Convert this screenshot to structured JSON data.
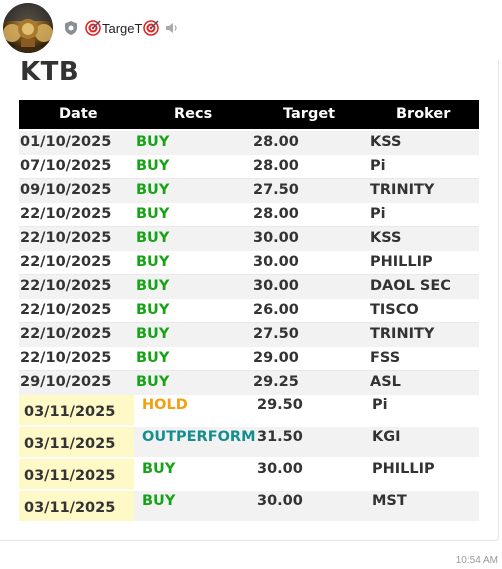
{
  "header": {
    "channel_name": "TargeT",
    "avatar_icon": "archer-avatar",
    "shield_icon": "shield-icon",
    "target_emoji": "direct-hit-emoji",
    "mute_icon": "speaker-muted-icon"
  },
  "card": {
    "stock": "KTB",
    "columns": [
      "Date",
      "Recs",
      "Target",
      "Broker"
    ],
    "rows": [
      {
        "date": "01/10/2025",
        "rec": "BUY",
        "target": "28.00",
        "broker": "KSS"
      },
      {
        "date": "07/10/2025",
        "rec": "BUY",
        "target": "28.00",
        "broker": "Pi"
      },
      {
        "date": "09/10/2025",
        "rec": "BUY",
        "target": "27.50",
        "broker": "TRINITY"
      },
      {
        "date": "22/10/2025",
        "rec": "BUY",
        "target": "28.00",
        "broker": "Pi"
      },
      {
        "date": "22/10/2025",
        "rec": "BUY",
        "target": "30.00",
        "broker": "KSS"
      },
      {
        "date": "22/10/2025",
        "rec": "BUY",
        "target": "30.00",
        "broker": "PHILLIP"
      },
      {
        "date": "22/10/2025",
        "rec": "BUY",
        "target": "30.00",
        "broker": "DAOL SEC"
      },
      {
        "date": "22/10/2025",
        "rec": "BUY",
        "target": "26.00",
        "broker": "TISCO"
      },
      {
        "date": "22/10/2025",
        "rec": "BUY",
        "target": "27.50",
        "broker": "TRINITY"
      },
      {
        "date": "22/10/2025",
        "rec": "BUY",
        "target": "29.00",
        "broker": "FSS"
      },
      {
        "date": "29/10/2025",
        "rec": "BUY",
        "target": "29.25",
        "broker": "ASL"
      }
    ],
    "new_rows": [
      {
        "date": "03/11/2025",
        "rec": "HOLD",
        "target": "29.50",
        "broker": "Pi"
      },
      {
        "date": "03/11/2025",
        "rec": "OUTPERFORM",
        "target": "31.50",
        "broker": "KGI"
      },
      {
        "date": "03/11/2025",
        "rec": "BUY",
        "target": "30.00",
        "broker": "PHILLIP"
      },
      {
        "date": "03/11/2025",
        "rec": "BUY",
        "target": "30.00",
        "broker": "MST"
      }
    ],
    "colors": {
      "buy": "#17a217",
      "hold": "#f0a010",
      "outperform": "#168e8e",
      "highlight": "#fff9c8",
      "header_bg": "#000000"
    }
  },
  "message": {
    "time": "10:54 AM"
  }
}
